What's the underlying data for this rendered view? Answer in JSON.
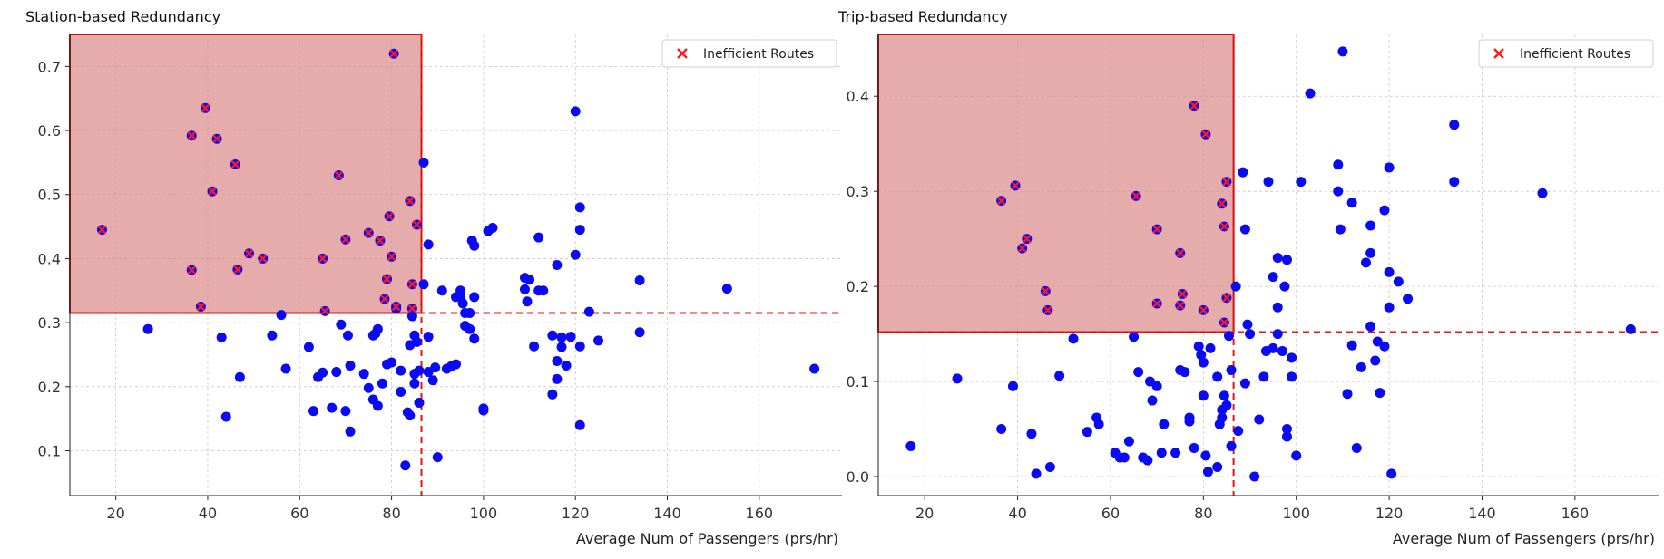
{
  "chart_data": [
    {
      "type": "scatter",
      "title": "Station-based Redundancy",
      "xlabel": "Average Num of Passengers (prs/hr)",
      "ylabel": "",
      "xlim": [
        10,
        178
      ],
      "ylim": [
        0.03,
        0.75
      ],
      "xticks": [
        "20",
        "40",
        "60",
        "80",
        "100",
        "120",
        "140",
        "160"
      ],
      "xtick_values": [
        20,
        40,
        60,
        80,
        100,
        120,
        140,
        160
      ],
      "yticks": [
        "0.1",
        "0.2",
        "0.3",
        "0.4",
        "0.5",
        "0.6",
        "0.7"
      ],
      "ytick_values": [
        0.1,
        0.2,
        0.3,
        0.4,
        0.5,
        0.6,
        0.7
      ],
      "grid": true,
      "legend": {
        "position": "top-right",
        "label": "Inefficient Routes"
      },
      "threshold": {
        "x": 86.5,
        "y": 0.315
      },
      "colors": {
        "point": "#0a0af5",
        "marker": "#ff1a1a",
        "region": "#dc8c8c",
        "threshold": "#ee1111"
      },
      "series": [
        {
          "name": "",
          "points": [
            [
              27,
              0.29
            ],
            [
              43,
              0.277
            ],
            [
              44,
              0.153
            ],
            [
              47,
              0.215
            ],
            [
              54,
              0.28
            ],
            [
              56,
              0.312
            ],
            [
              57,
              0.228
            ],
            [
              62,
              0.262
            ],
            [
              63,
              0.162
            ],
            [
              64,
              0.215
            ],
            [
              65,
              0.222
            ],
            [
              67,
              0.167
            ],
            [
              68,
              0.223
            ],
            [
              69,
              0.297
            ],
            [
              70,
              0.162
            ],
            [
              70.5,
              0.28
            ],
            [
              71,
              0.233
            ],
            [
              71,
              0.13
            ],
            [
              74,
              0.22
            ],
            [
              75,
              0.198
            ],
            [
              76,
              0.28
            ],
            [
              76,
              0.18
            ],
            [
              76.5,
              0.283
            ],
            [
              77,
              0.29
            ],
            [
              77,
              0.17
            ],
            [
              78,
              0.205
            ],
            [
              79,
              0.235
            ],
            [
              80,
              0.238
            ],
            [
              81,
              0.322
            ],
            [
              82,
              0.192
            ],
            [
              82,
              0.225
            ],
            [
              83,
              0.077
            ],
            [
              83.5,
              0.16
            ],
            [
              84,
              0.155
            ],
            [
              84,
              0.265
            ],
            [
              84.5,
              0.31
            ],
            [
              85,
              0.22
            ],
            [
              85,
              0.28
            ],
            [
              85,
              0.205
            ],
            [
              85.5,
              0.27
            ],
            [
              86,
              0.175
            ],
            [
              86,
              0.225
            ],
            [
              87,
              0.36
            ],
            [
              87,
              0.55
            ],
            [
              88,
              0.422
            ],
            [
              88,
              0.278
            ],
            [
              88,
              0.223
            ],
            [
              89,
              0.21
            ],
            [
              89.5,
              0.23
            ],
            [
              90,
              0.09
            ],
            [
              91,
              0.35
            ],
            [
              92,
              0.228
            ],
            [
              93,
              0.232
            ],
            [
              94,
              0.235
            ],
            [
              94,
              0.34
            ],
            [
              95,
              0.35
            ],
            [
              95,
              0.34
            ],
            [
              95.5,
              0.33
            ],
            [
              96,
              0.315
            ],
            [
              96,
              0.295
            ],
            [
              97,
              0.315
            ],
            [
              97,
              0.29
            ],
            [
              97.5,
              0.428
            ],
            [
              98,
              0.275
            ],
            [
              98,
              0.42
            ],
            [
              98,
              0.34
            ],
            [
              100,
              0.163
            ],
            [
              100,
              0.166
            ],
            [
              101,
              0.443
            ],
            [
              102,
              0.448
            ],
            [
              109,
              0.37
            ],
            [
              109,
              0.352
            ],
            [
              109.5,
              0.333
            ],
            [
              110,
              0.367
            ],
            [
              111,
              0.263
            ],
            [
              112,
              0.433
            ],
            [
              112,
              0.35
            ],
            [
              113,
              0.35
            ],
            [
              115,
              0.188
            ],
            [
              115,
              0.28
            ],
            [
              116,
              0.39
            ],
            [
              116,
              0.24
            ],
            [
              116,
              0.212
            ],
            [
              117,
              0.262
            ],
            [
              117,
              0.277
            ],
            [
              118,
              0.233
            ],
            [
              119,
              0.278
            ],
            [
              120,
              0.406
            ],
            [
              120,
              0.63
            ],
            [
              121,
              0.445
            ],
            [
              121,
              0.263
            ],
            [
              121,
              0.48
            ],
            [
              121,
              0.14
            ],
            [
              123,
              0.317
            ],
            [
              125,
              0.272
            ],
            [
              134,
              0.366
            ],
            [
              134,
              0.285
            ],
            [
              153,
              0.353
            ],
            [
              172,
              0.228
            ]
          ]
        },
        {
          "name": "Inefficient Routes",
          "points": [
            [
              17,
              0.445
            ],
            [
              36.5,
              0.592
            ],
            [
              36.5,
              0.382
            ],
            [
              38.5,
              0.325
            ],
            [
              39.5,
              0.635
            ],
            [
              41,
              0.505
            ],
            [
              42,
              0.587
            ],
            [
              46,
              0.547
            ],
            [
              46.5,
              0.383
            ],
            [
              49,
              0.408
            ],
            [
              52,
              0.4
            ],
            [
              65,
              0.4
            ],
            [
              65.5,
              0.318
            ],
            [
              68.5,
              0.53
            ],
            [
              70,
              0.43
            ],
            [
              75,
              0.44
            ],
            [
              77.5,
              0.428
            ],
            [
              78.5,
              0.337
            ],
            [
              79,
              0.368
            ],
            [
              79.5,
              0.466
            ],
            [
              80,
              0.403
            ],
            [
              80.5,
              0.72
            ],
            [
              81,
              0.325
            ],
            [
              84,
              0.49
            ],
            [
              84.5,
              0.322
            ],
            [
              84.5,
              0.36
            ],
            [
              85.5,
              0.453
            ]
          ]
        }
      ]
    },
    {
      "type": "scatter",
      "title": "Trip-based Redundancy",
      "xlabel": "Average Num of Passengers (prs/hr)",
      "ylabel": "",
      "xlim": [
        10,
        178
      ],
      "ylim": [
        -0.02,
        0.465
      ],
      "xticks": [
        "20",
        "40",
        "60",
        "80",
        "100",
        "120",
        "140",
        "160"
      ],
      "xtick_values": [
        20,
        40,
        60,
        80,
        100,
        120,
        140,
        160
      ],
      "yticks": [
        "0.0",
        "0.1",
        "0.2",
        "0.3",
        "0.4"
      ],
      "ytick_values": [
        0.0,
        0.1,
        0.2,
        0.3,
        0.4
      ],
      "grid": true,
      "legend": {
        "position": "top-right",
        "label": "Inefficient Routes"
      },
      "threshold": {
        "x": 86.5,
        "y": 0.152
      },
      "colors": {
        "point": "#0a0af5",
        "marker": "#ff1a1a",
        "region": "#dc8c8c",
        "threshold": "#ee1111"
      },
      "series": [
        {
          "name": "",
          "points": [
            [
              17,
              0.032
            ],
            [
              27,
              0.103
            ],
            [
              36.5,
              0.05
            ],
            [
              39,
              0.095
            ],
            [
              43,
              0.045
            ],
            [
              44,
              0.003
            ],
            [
              47,
              0.01
            ],
            [
              49,
              0.106
            ],
            [
              52,
              0.145
            ],
            [
              55,
              0.047
            ],
            [
              57,
              0.062
            ],
            [
              57.5,
              0.055
            ],
            [
              61,
              0.025
            ],
            [
              62,
              0.02
            ],
            [
              63,
              0.02
            ],
            [
              64,
              0.037
            ],
            [
              65,
              0.147
            ],
            [
              66,
              0.11
            ],
            [
              67,
              0.02
            ],
            [
              68,
              0.017
            ],
            [
              68.5,
              0.1
            ],
            [
              69,
              0.08
            ],
            [
              70,
              0.095
            ],
            [
              71,
              0.025
            ],
            [
              71.5,
              0.055
            ],
            [
              74,
              0.025
            ],
            [
              75,
              0.112
            ],
            [
              76,
              0.11
            ],
            [
              77,
              0.062
            ],
            [
              77,
              0.058
            ],
            [
              78,
              0.03
            ],
            [
              79,
              0.137
            ],
            [
              79.5,
              0.128
            ],
            [
              80,
              0.12
            ],
            [
              80,
              0.085
            ],
            [
              80.5,
              0.022
            ],
            [
              81,
              0.005
            ],
            [
              81.5,
              0.135
            ],
            [
              83,
              0.105
            ],
            [
              83,
              0.01
            ],
            [
              83.5,
              0.055
            ],
            [
              84,
              0.062
            ],
            [
              84,
              0.07
            ],
            [
              84.5,
              0.085
            ],
            [
              85,
              0.075
            ],
            [
              85.5,
              0.148
            ],
            [
              86,
              0.112
            ],
            [
              86,
              0.032
            ],
            [
              87,
              0.2
            ],
            [
              87.5,
              0.048
            ],
            [
              88.5,
              0.32
            ],
            [
              89,
              0.26
            ],
            [
              89.5,
              0.16
            ],
            [
              89,
              0.098
            ],
            [
              90,
              0.15
            ],
            [
              91,
              0.0
            ],
            [
              92,
              0.06
            ],
            [
              93,
              0.105
            ],
            [
              93.5,
              0.132
            ],
            [
              94,
              0.31
            ],
            [
              95,
              0.135
            ],
            [
              95,
              0.21
            ],
            [
              96,
              0.23
            ],
            [
              96,
              0.178
            ],
            [
              96,
              0.15
            ],
            [
              97,
              0.132
            ],
            [
              97.5,
              0.2
            ],
            [
              98,
              0.042
            ],
            [
              98,
              0.228
            ],
            [
              98,
              0.05
            ],
            [
              99,
              0.105
            ],
            [
              99,
              0.125
            ],
            [
              100,
              0.022
            ],
            [
              101,
              0.31
            ],
            [
              103,
              0.403
            ],
            [
              109,
              0.3
            ],
            [
              109,
              0.328
            ],
            [
              109.5,
              0.26
            ],
            [
              110,
              0.447
            ],
            [
              111,
              0.087
            ],
            [
              112,
              0.288
            ],
            [
              112,
              0.138
            ],
            [
              113,
              0.03
            ],
            [
              114,
              0.115
            ],
            [
              115,
              0.225
            ],
            [
              116,
              0.264
            ],
            [
              116,
              0.235
            ],
            [
              116,
              0.158
            ],
            [
              117,
              0.122
            ],
            [
              117.5,
              0.142
            ],
            [
              118,
              0.088
            ],
            [
              119,
              0.137
            ],
            [
              119,
              0.28
            ],
            [
              120,
              0.325
            ],
            [
              120,
              0.215
            ],
            [
              120,
              0.178
            ],
            [
              120.5,
              0.003
            ],
            [
              122,
              0.205
            ],
            [
              124,
              0.187
            ],
            [
              134,
              0.37
            ],
            [
              134,
              0.31
            ],
            [
              153,
              0.298
            ],
            [
              172,
              0.155
            ]
          ]
        },
        {
          "name": "Inefficient Routes",
          "points": [
            [
              36.5,
              0.29
            ],
            [
              39.5,
              0.306
            ],
            [
              41,
              0.24
            ],
            [
              42,
              0.25
            ],
            [
              46,
              0.195
            ],
            [
              46.5,
              0.175
            ],
            [
              65.5,
              0.295
            ],
            [
              70,
              0.26
            ],
            [
              70,
              0.182
            ],
            [
              75,
              0.235
            ],
            [
              75,
              0.18
            ],
            [
              75.5,
              0.192
            ],
            [
              78,
              0.39
            ],
            [
              80,
              0.175
            ],
            [
              80.5,
              0.36
            ],
            [
              84,
              0.287
            ],
            [
              84.5,
              0.263
            ],
            [
              84.5,
              0.162
            ],
            [
              85,
              0.31
            ],
            [
              85,
              0.188
            ]
          ]
        }
      ]
    }
  ]
}
